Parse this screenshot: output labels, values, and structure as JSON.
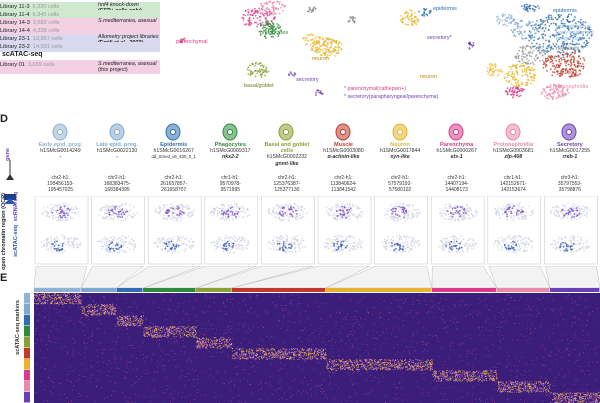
{
  "libraries": [
    {
      "name": "Library 11-3",
      "cells": "6,320 cells",
      "desc1": "hnf4 knock-down",
      "desc2": "(GFP+ cells only)",
      "color": "#cfe9cf"
    },
    {
      "name": "Library 11-4",
      "cells": "6,345 cells",
      "desc1": "",
      "desc2": "",
      "color": "#cfe9cf"
    },
    {
      "name": "Library 14-3",
      "cells": "3,682 cells",
      "desc1": "S.mediterranea, asexual",
      "desc2": "",
      "color": "#f3d0e2"
    },
    {
      "name": "Library 14-4",
      "cells": "4,338 cells",
      "desc1": "",
      "desc2": "",
      "color": "#f3d0e2"
    },
    {
      "name": "Library 23-1",
      "cells": "13,867 cells",
      "desc1": "Allometry project libraries",
      "desc2": "(Emili et al., 2023)",
      "color": "#d8d8ee"
    },
    {
      "name": "Library 23-2",
      "cells": "14,931 cells",
      "desc1": "",
      "desc2": "",
      "color": "#d8d8ee"
    }
  ],
  "atac_heading": "scATAC-seq",
  "atac_library": {
    "name": "Library 01",
    "cells": "3,659 cells",
    "desc1": "S.mediterranea, asexual",
    "desc2": "(this project)",
    "color": "#f3d0e2"
  },
  "top_clusters": {
    "epidermis": "epidermis",
    "phagocytes": "phagocytes",
    "neuron": "neuron",
    "parenchymal": "parenchymal",
    "basal": "basal/goblet",
    "secretory": "secretory",
    "secretory_star": "secretory*"
  },
  "right_clusters": {
    "epidermis": "epidermis",
    "late": "late epidermal",
    "early": "early epidermal",
    "progenitors": "progenitors",
    "neoblasts": "neoblasts",
    "muscle": "muscle",
    "neuron": "neuron",
    "protonephridia": "protonephridia",
    "secretory": "secretory*"
  },
  "legend": {
    "star1": "* parenchymal(cathepsin+)",
    "star2": "* secretory(parapharyngeal/parenchyma)"
  },
  "panel_d": "D",
  "panel_e": "E",
  "columns": [
    {
      "name": "Early epid. prog.",
      "id": "h1SMcG0014249",
      "gene": "-",
      "coord1": "chr2-h1:",
      "coord2": "195456153-",
      "coord3": "195457025",
      "color": "#8fb3d6",
      "extra": ""
    },
    {
      "name": "Late epid. prog.",
      "id": "h1SMcG0022130",
      "gene": "-",
      "coord1": "chr2-h1:",
      "coord2": "168383475-",
      "coord3": "168384395",
      "color": "#7fa8cf",
      "extra": ""
    },
    {
      "name": "Epidermis",
      "id": "h1SMcG0016267",
      "gene": "",
      "coord1": "chr2-h1:",
      "coord2": "261657857-",
      "coord3": "261658707",
      "color": "#2f6fb0",
      "extra": "dd_Smed_v6_430_0_1"
    },
    {
      "name": "Phagocytes",
      "id": "h1SMcG0009317",
      "gene": "nkx2-2",
      "coord1": "chr1-h1:",
      "coord2": "9570978-",
      "coord3": "9571995",
      "color": "#2e8b3a",
      "extra": ""
    },
    {
      "name": "Basal and goblet cells",
      "id": "h1SMcG0002232",
      "gene": "gnmt-like",
      "coord1": "chr2-h1:",
      "coord2": "125376387-",
      "coord3": "125377130",
      "color": "#8aa136",
      "extra": ""
    },
    {
      "name": "Muscle",
      "id": "h1SMcG0003080",
      "gene": "α-actinin-like",
      "coord1": "chr2-h1:",
      "coord2": "113840624-",
      "coord3": "113841542",
      "color": "#c0392b",
      "extra": ""
    },
    {
      "name": "Neuron",
      "id": "h1SMcG0017844",
      "gene": "syn-like",
      "coord1": "chr2-h1:",
      "coord2": "57579192-",
      "coord3": "57580102",
      "color": "#e6b32a",
      "extra": ""
    },
    {
      "name": "Parenchyma",
      "id": "h1SMcG0000267",
      "gene": "ets-1",
      "coord1": "chr2-h1:",
      "coord2": "14407194-",
      "coord3": "14408173",
      "color": "#d93b8a",
      "extra": ""
    },
    {
      "name": "Protonephridia",
      "id": "h1SMcG0003681",
      "gene": "zfp-408",
      "coord1": "chr1-h1:",
      "coord2": "142152671-",
      "coord3": "142153674",
      "color": "#e88aa8",
      "extra": ""
    },
    {
      "name": "Secretory",
      "id": "h1SMcG0017255",
      "gene": "rreb-1",
      "coord1": "chr3-h1:",
      "coord2": "35797553-",
      "coord3": "35798876",
      "color": "#6a3fb5",
      "extra": ""
    }
  ],
  "side_labels": {
    "gene": "gene",
    "rna": "scRNA-seq",
    "atac": "scATAC-seq",
    "ocr": "open chromatin region (OCR)",
    "markers": "scATAC-seq markers"
  }
}
